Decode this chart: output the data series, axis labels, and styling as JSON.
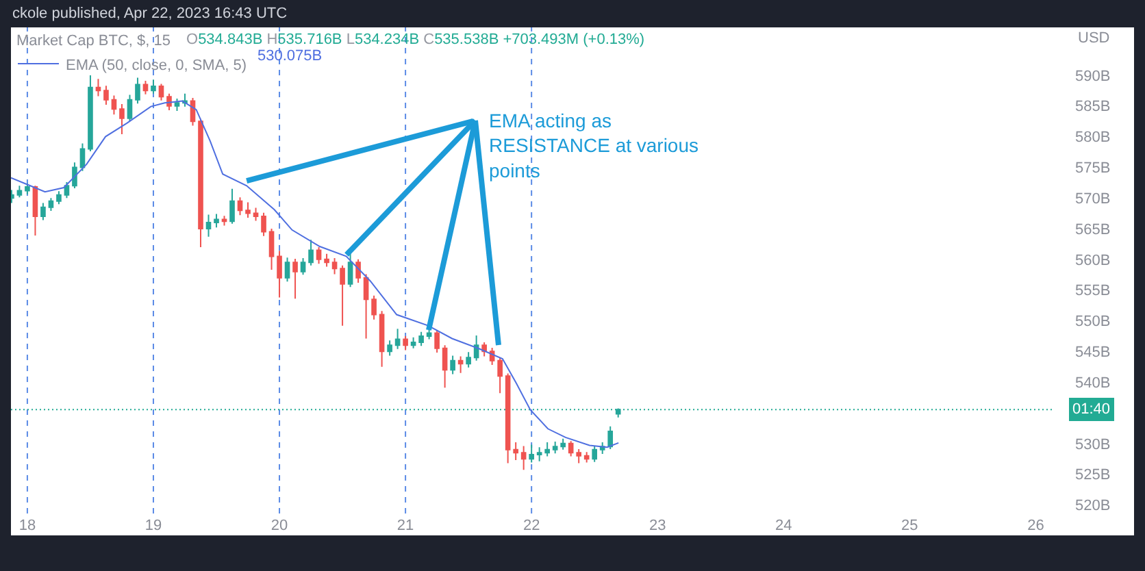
{
  "chart_data": {
    "type": "candlestick",
    "title": "Market Cap BTC, $, 15",
    "ylabel": "USD",
    "x": [
      17.875,
      17.9375,
      18.0,
      18.0625,
      18.125,
      18.1875,
      18.25,
      18.3125,
      18.375,
      18.4375,
      18.5,
      18.5625,
      18.625,
      18.6875,
      18.75,
      18.8125,
      18.875,
      18.9375,
      19.0,
      19.0625,
      19.125,
      19.1875,
      19.25,
      19.3125,
      19.375,
      19.4375,
      19.5,
      19.5625,
      19.625,
      19.6875,
      19.75,
      19.8125,
      19.875,
      19.9375,
      20.0,
      20.0625,
      20.125,
      20.1875,
      20.25,
      20.3125,
      20.375,
      20.4375,
      20.5,
      20.5625,
      20.625,
      20.6875,
      20.75,
      20.8125,
      20.875,
      20.9375,
      21.0,
      21.0625,
      21.125,
      21.1875,
      21.25,
      21.3125,
      21.375,
      21.4375,
      21.5,
      21.5625,
      21.625,
      21.6875,
      21.75,
      21.8125,
      21.875,
      21.9375,
      22.0,
      22.0625,
      22.125,
      22.1875,
      22.25,
      22.3125,
      22.375,
      22.4375,
      22.5,
      22.5625,
      22.625,
      22.6875
    ],
    "ohlc": [
      [
        570.0,
        571.3,
        569.2,
        570.5
      ],
      [
        570.5,
        572.0,
        570.1,
        571.2
      ],
      [
        571.2,
        572.4,
        570.6,
        571.8
      ],
      [
        571.8,
        572.0,
        563.9,
        567.0
      ],
      [
        567.0,
        569.2,
        566.4,
        568.5
      ],
      [
        568.5,
        570.0,
        567.9,
        569.5
      ],
      [
        569.5,
        571.1,
        569.0,
        570.5
      ],
      [
        570.5,
        572.6,
        570.0,
        572.0
      ],
      [
        572.0,
        575.8,
        571.6,
        575.0
      ],
      [
        575.0,
        578.9,
        574.4,
        578.0
      ],
      [
        578.0,
        590.0,
        577.6,
        588.0
      ],
      [
        588.0,
        589.4,
        586.6,
        587.5
      ],
      [
        587.5,
        588.3,
        585.2,
        586.0
      ],
      [
        586.0,
        586.7,
        583.6,
        584.5
      ],
      [
        584.5,
        585.3,
        580.4,
        583.0
      ],
      [
        583.0,
        586.8,
        582.5,
        586.0
      ],
      [
        586.0,
        589.6,
        585.4,
        588.5
      ],
      [
        588.5,
        589.1,
        586.9,
        587.5
      ],
      [
        587.5,
        589.3,
        587.0,
        588.2
      ],
      [
        588.2,
        588.6,
        585.9,
        586.5
      ],
      [
        586.5,
        587.0,
        584.3,
        585.0
      ],
      [
        585.0,
        586.2,
        584.2,
        585.5
      ],
      [
        585.5,
        587.0,
        584.9,
        585.8
      ],
      [
        585.8,
        586.3,
        581.8,
        582.5
      ],
      [
        582.5,
        582.9,
        562.0,
        565.0
      ],
      [
        565.0,
        567.3,
        563.7,
        566.0
      ],
      [
        566.0,
        567.4,
        565.2,
        566.5
      ],
      [
        566.5,
        567.1,
        565.5,
        566.2
      ],
      [
        566.2,
        571.5,
        565.8,
        569.5
      ],
      [
        569.5,
        570.1,
        567.2,
        568.0
      ],
      [
        568.0,
        569.3,
        566.8,
        567.5
      ],
      [
        567.5,
        568.4,
        566.3,
        567.0
      ],
      [
        567.0,
        567.6,
        563.8,
        564.5
      ],
      [
        564.5,
        565.0,
        558.3,
        560.5
      ],
      [
        560.5,
        561.4,
        553.8,
        557.0
      ],
      [
        557.0,
        560.3,
        556.4,
        559.5
      ],
      [
        559.5,
        560.1,
        553.6,
        558.0
      ],
      [
        558.0,
        560.2,
        557.5,
        559.5
      ],
      [
        559.5,
        563.2,
        559.0,
        561.5
      ],
      [
        561.5,
        562.0,
        559.3,
        560.0
      ],
      [
        560.0,
        560.9,
        558.8,
        559.5
      ],
      [
        559.5,
        560.2,
        557.6,
        558.5
      ],
      [
        558.5,
        559.0,
        549.2,
        556.0
      ],
      [
        556.0,
        561.4,
        555.5,
        559.5
      ],
      [
        559.5,
        560.0,
        556.2,
        557.0
      ],
      [
        557.0,
        557.6,
        547.1,
        553.5
      ],
      [
        553.5,
        554.1,
        550.2,
        551.0
      ],
      [
        551.0,
        551.6,
        542.5,
        545.0
      ],
      [
        545.0,
        546.8,
        544.3,
        546.0
      ],
      [
        546.0,
        548.7,
        545.4,
        547.0
      ],
      [
        547.0,
        547.5,
        545.2,
        546.0
      ],
      [
        546.0,
        547.3,
        545.5,
        546.5
      ],
      [
        546.5,
        548.2,
        545.9,
        547.5
      ],
      [
        547.5,
        549.2,
        547.0,
        548.0
      ],
      [
        548.0,
        548.5,
        544.8,
        545.5
      ],
      [
        545.5,
        546.0,
        539.1,
        542.0
      ],
      [
        542.0,
        544.3,
        541.3,
        543.5
      ],
      [
        543.5,
        544.2,
        541.5,
        543.0
      ],
      [
        543.0,
        544.9,
        542.4,
        544.0
      ],
      [
        544.0,
        547.6,
        543.5,
        546.0
      ],
      [
        546.0,
        546.5,
        544.2,
        545.0
      ],
      [
        545.0,
        545.6,
        542.8,
        543.5
      ],
      [
        543.5,
        544.0,
        538.2,
        541.0
      ],
      [
        541.0,
        541.4,
        526.8,
        529.0
      ],
      [
        529.0,
        530.2,
        527.3,
        528.5
      ],
      [
        528.5,
        529.6,
        525.7,
        527.5
      ],
      [
        527.5,
        529.8,
        526.9,
        528.2
      ],
      [
        528.2,
        529.4,
        527.1,
        528.5
      ],
      [
        528.5,
        530.2,
        527.9,
        529.0
      ],
      [
        529.0,
        530.3,
        528.4,
        529.5
      ],
      [
        529.5,
        530.8,
        529.0,
        530.0
      ],
      [
        530.0,
        530.4,
        527.9,
        528.5
      ],
      [
        528.5,
        529.1,
        526.8,
        528.0
      ],
      [
        528.0,
        528.6,
        526.9,
        527.5
      ],
      [
        527.5,
        529.6,
        527.0,
        529.0
      ],
      [
        529.0,
        530.2,
        528.3,
        529.5
      ],
      [
        529.5,
        532.8,
        529.1,
        532.0
      ],
      [
        534.843,
        535.716,
        534.234,
        535.538
      ]
    ],
    "series": [
      {
        "name": "EMA (50, close, 0, SMA, 5)",
        "type": "line",
        "color": "#4f6fe0",
        "x": [
          17.87,
          18.0,
          18.14,
          18.29,
          18.47,
          18.62,
          18.79,
          18.98,
          19.09,
          19.23,
          19.34,
          19.45,
          19.55,
          19.74,
          19.96,
          20.1,
          20.32,
          20.53,
          20.72,
          20.93,
          21.18,
          21.37,
          21.59,
          21.77,
          21.88,
          21.99,
          22.13,
          22.27,
          22.46,
          22.6,
          22.69
        ],
        "values": [
          573.3,
          572.2,
          571.0,
          571.7,
          575.5,
          580.0,
          582.2,
          584.9,
          585.5,
          585.8,
          584.4,
          579.3,
          573.9,
          572.0,
          568.1,
          564.8,
          562.1,
          560.5,
          556.5,
          551.0,
          549.2,
          547.1,
          545.4,
          543.8,
          539.8,
          535.5,
          532.4,
          531.0,
          529.7,
          529.4,
          530.1
        ]
      }
    ],
    "xlim": [
      17.87,
      26.15
    ],
    "xticks": [
      18,
      19,
      20,
      21,
      22,
      23,
      24,
      25,
      26
    ],
    "ylim": [
      518.6,
      597.8
    ],
    "yticks": [
      {
        "value": 520,
        "label": "520B"
      },
      {
        "value": 525,
        "label": "525B"
      },
      {
        "value": 530,
        "label": "530B"
      },
      {
        "value": 540,
        "label": "540B"
      },
      {
        "value": 545,
        "label": "545B"
      },
      {
        "value": 550,
        "label": "550B"
      },
      {
        "value": 555,
        "label": "555B"
      },
      {
        "value": 560,
        "label": "560B"
      },
      {
        "value": 565,
        "label": "565B"
      },
      {
        "value": 570,
        "label": "570B"
      },
      {
        "value": 575,
        "label": "575B"
      },
      {
        "value": 580,
        "label": "580B"
      },
      {
        "value": 585,
        "label": "585B"
      },
      {
        "value": 590,
        "label": "590B"
      }
    ],
    "ref_lines": [
      {
        "axis": "x",
        "value": 18,
        "color": "#5b8be6",
        "line_style": "dashed"
      },
      {
        "axis": "x",
        "value": 19,
        "color": "#5b8be6",
        "line_style": "dashed"
      },
      {
        "axis": "x",
        "value": 20,
        "color": "#5b8be6",
        "line_style": "dashed"
      },
      {
        "axis": "x",
        "value": 21,
        "color": "#5b8be6",
        "line_style": "dashed"
      },
      {
        "axis": "x",
        "value": 22,
        "color": "#5b8be6",
        "line_style": "dashed"
      },
      {
        "axis": "y",
        "value": 535.538,
        "color": "#22ab94",
        "line_style": "dotted"
      }
    ],
    "annotations": [
      "ckole published, Apr 22, 2023 16:43 UTC",
      "O534.843B H535.716B L534.234B C535.538B +703.493M (+0.13%)",
      "530.075B",
      {
        "text": "EMA acting as RESISTANCE at various points",
        "x": 19.74,
        "y": 572.8
      },
      "01:40"
    ],
    "legend": "top left",
    "grid": false
  }
}
